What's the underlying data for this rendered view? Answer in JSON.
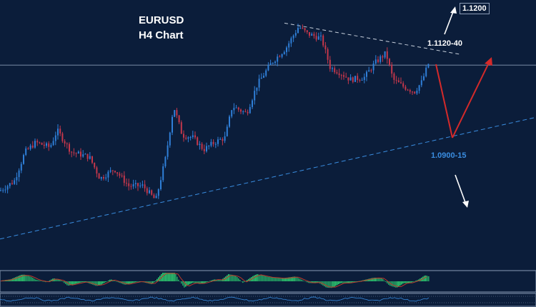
{
  "chart_data": {
    "type": "candlestick",
    "title": "EURUSD",
    "subtitle": "H4 Chart",
    "colors": {
      "background": "#0b1d3a",
      "bull": "#2f7fd8",
      "bear": "#c4374b",
      "support_line": "#3a8de0",
      "resistance_line": "#c8d0dc",
      "red_arrow": "#d42a2a",
      "white_arrow": "#ffffff",
      "osc_green": "#2ecc71",
      "osc_red": "#c0392b",
      "osc_blue": "#3a8de0"
    },
    "ylim": [
      1.068,
      1.1215
    ],
    "price_path": [
      [
        0,
        1.0835
      ],
      [
        20,
        1.0855
      ],
      [
        35,
        1.0915
      ],
      [
        50,
        1.0935
      ],
      [
        70,
        1.0925
      ],
      [
        80,
        1.096
      ],
      [
        100,
        1.0915
      ],
      [
        125,
        1.0905
      ],
      [
        140,
        1.086
      ],
      [
        160,
        1.088
      ],
      [
        180,
        1.0845
      ],
      [
        200,
        1.0845
      ],
      [
        218,
        1.0815
      ],
      [
        232,
        1.0905
      ],
      [
        243,
        1.101
      ],
      [
        255,
        1.095
      ],
      [
        270,
        1.0945
      ],
      [
        285,
        1.092
      ],
      [
        300,
        1.0935
      ],
      [
        315,
        1.0945
      ],
      [
        325,
        1.101
      ],
      [
        345,
        1.0995
      ],
      [
        360,
        1.1055
      ],
      [
        380,
        1.11
      ],
      [
        400,
        1.113
      ],
      [
        418,
        1.1175
      ],
      [
        430,
        1.116
      ],
      [
        450,
        1.115
      ],
      [
        462,
        1.109
      ],
      [
        475,
        1.108
      ],
      [
        490,
        1.1065
      ],
      [
        510,
        1.107
      ],
      [
        525,
        1.11
      ],
      [
        540,
        1.112
      ],
      [
        550,
        1.1065
      ],
      [
        565,
        1.105
      ],
      [
        580,
        1.104
      ],
      [
        590,
        1.106
      ],
      [
        600,
        1.11
      ]
    ],
    "current_price": 1.1095,
    "resistance_line": [
      [
        398,
        1.1182
      ],
      [
        645,
        1.1117
      ]
    ],
    "support_line": [
      [
        0,
        1.0735
      ],
      [
        750,
        1.0987
      ]
    ],
    "annotations": {
      "top_box": "1.1200",
      "resistance_zone": "1.1120-40",
      "support_zone": "1.0900-15"
    }
  }
}
